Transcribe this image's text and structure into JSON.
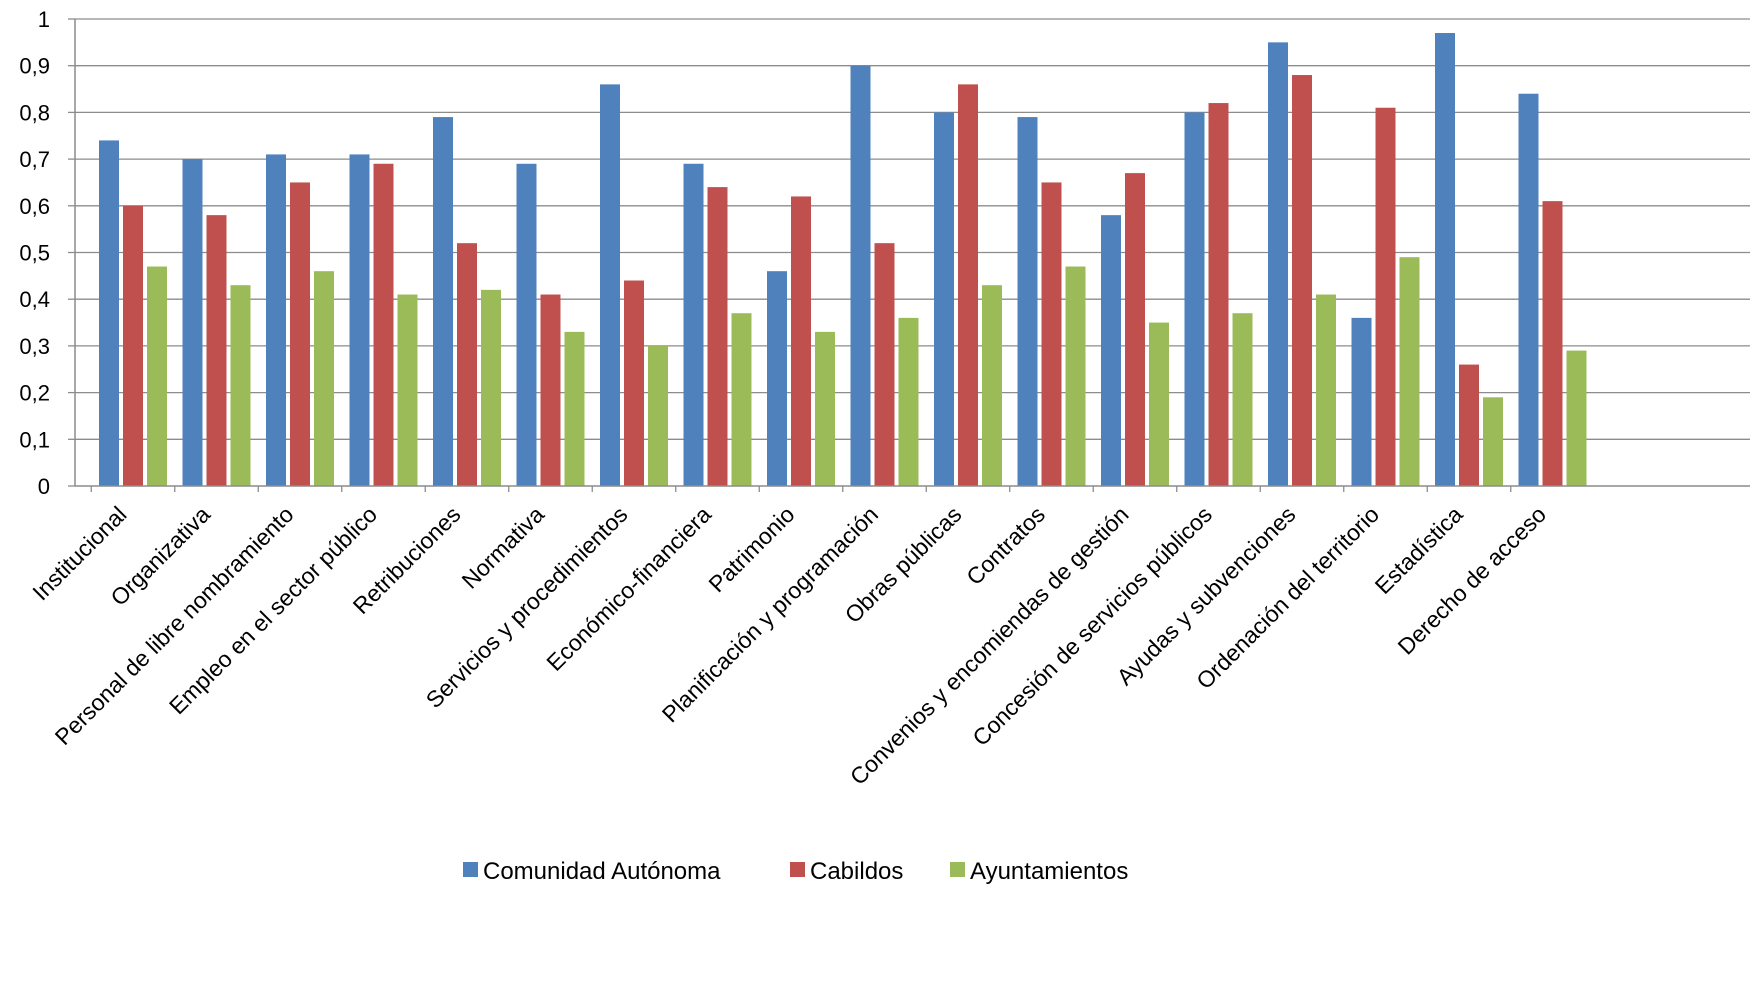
{
  "chart_data": {
    "type": "bar",
    "title": "",
    "xlabel": "",
    "ylabel": "",
    "ylim": [
      0,
      1
    ],
    "yticks": [
      "0",
      "0,1",
      "0,2",
      "0,3",
      "0,4",
      "0,5",
      "0,6",
      "0,7",
      "0,8",
      "0,9",
      "1"
    ],
    "grid": true,
    "legend_position": "bottom",
    "categories": [
      "Institucional",
      "Organizativa",
      "Personal de libre nombramiento",
      "Empleo en el sector público",
      "Retribuciones",
      "Normativa",
      "Servicios y procedimientos",
      "Económico-financiera",
      "Patrimonio",
      "Planificación y programación",
      "Obras públicas",
      "Contratos",
      "Convenios y encomiendas de gestión",
      "Concesión de servicios públicos",
      "Ayudas y subvenciones",
      "Ordenación del territorio",
      "Estadística",
      "Derecho de acceso"
    ],
    "series": [
      {
        "name": "Comunidad Autónoma",
        "color": "#4F81BD",
        "values": [
          0.74,
          0.7,
          0.71,
          0.71,
          0.79,
          0.69,
          0.86,
          0.69,
          0.46,
          0.9,
          0.8,
          0.79,
          0.58,
          0.8,
          0.95,
          0.36,
          0.97,
          0.84
        ]
      },
      {
        "name": "Cabildos",
        "color": "#C0504D",
        "values": [
          0.6,
          0.58,
          0.65,
          0.69,
          0.52,
          0.41,
          0.44,
          0.64,
          0.62,
          0.52,
          0.86,
          0.65,
          0.67,
          0.82,
          0.88,
          0.81,
          0.26,
          0.61
        ]
      },
      {
        "name": "Ayuntamientos",
        "color": "#9BBB59",
        "values": [
          0.47,
          0.43,
          0.46,
          0.41,
          0.42,
          0.33,
          0.3,
          0.37,
          0.33,
          0.36,
          0.43,
          0.47,
          0.35,
          0.37,
          0.41,
          0.49,
          0.19,
          0.29
        ]
      }
    ]
  }
}
